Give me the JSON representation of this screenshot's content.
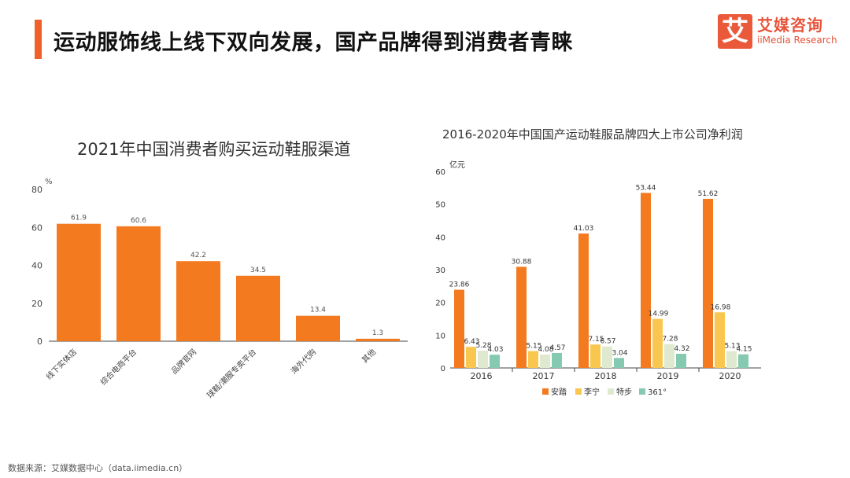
{
  "header": {
    "title": "运动服饰线上线下双向发展，国产品牌得到消费者青睐"
  },
  "logo": {
    "glyph": "艾",
    "name_cn": "艾媒咨询",
    "name_en": "iiMedia Research"
  },
  "footer": {
    "source": "数据来源：艾媒数据中心（data.iimedia.cn）"
  },
  "colors": {
    "accent": "#f0612a",
    "bar_orange": "#f47a20",
    "lining": "#f9c74f",
    "xtep": "#dfe9cf",
    "brand361": "#84c9b0"
  },
  "chart_data": [
    {
      "type": "bar",
      "title": "2021年中国消费者购买运动鞋服渠道",
      "ylabel": "%",
      "ylim": [
        0,
        80
      ],
      "yticks": [
        "0",
        "20",
        "40",
        "60",
        "80"
      ],
      "categories": [
        "线下实体店",
        "综合电商平台",
        "品牌官网",
        "球鞋/潮服专卖平台",
        "海外代购",
        "其他"
      ],
      "values": [
        61.9,
        60.6,
        42.2,
        34.5,
        13.4,
        1.3
      ],
      "value_labels": [
        "61.9",
        "60.6",
        "42.2",
        "34.5",
        "13.4",
        "1.3"
      ],
      "grid": false
    },
    {
      "type": "bar",
      "title": "2016-2020年中国国产运动鞋服品牌四大上市公司净利润",
      "ylabel": "亿元",
      "ylim": [
        0,
        60
      ],
      "yticks": [
        "0",
        "10",
        "20",
        "30",
        "40",
        "50",
        "60"
      ],
      "categories": [
        "2016",
        "2017",
        "2018",
        "2019",
        "2020"
      ],
      "series": [
        {
          "name": "安踏",
          "values": [
            23.86,
            30.88,
            41.03,
            53.44,
            51.62
          ],
          "labels": [
            "23.86",
            "30.88",
            "41.03",
            "53.44",
            "51.62"
          ]
        },
        {
          "name": "李宁",
          "values": [
            6.43,
            5.15,
            7.15,
            14.99,
            16.98
          ],
          "labels": [
            "6.43",
            "5.15",
            "7.15",
            "14.99",
            "16.98"
          ]
        },
        {
          "name": "特步",
          "values": [
            5.28,
            4.08,
            6.57,
            7.28,
            5.13
          ],
          "labels": [
            "5.28",
            "4.08",
            "6.57",
            "7.28",
            "5.13"
          ]
        },
        {
          "name": "361°",
          "values": [
            4.03,
            4.57,
            3.04,
            4.32,
            4.15
          ],
          "labels": [
            "4.03",
            "4.57",
            "3.04",
            "4.32",
            "4.15"
          ]
        }
      ],
      "legend": "bottom",
      "grid": false
    }
  ]
}
